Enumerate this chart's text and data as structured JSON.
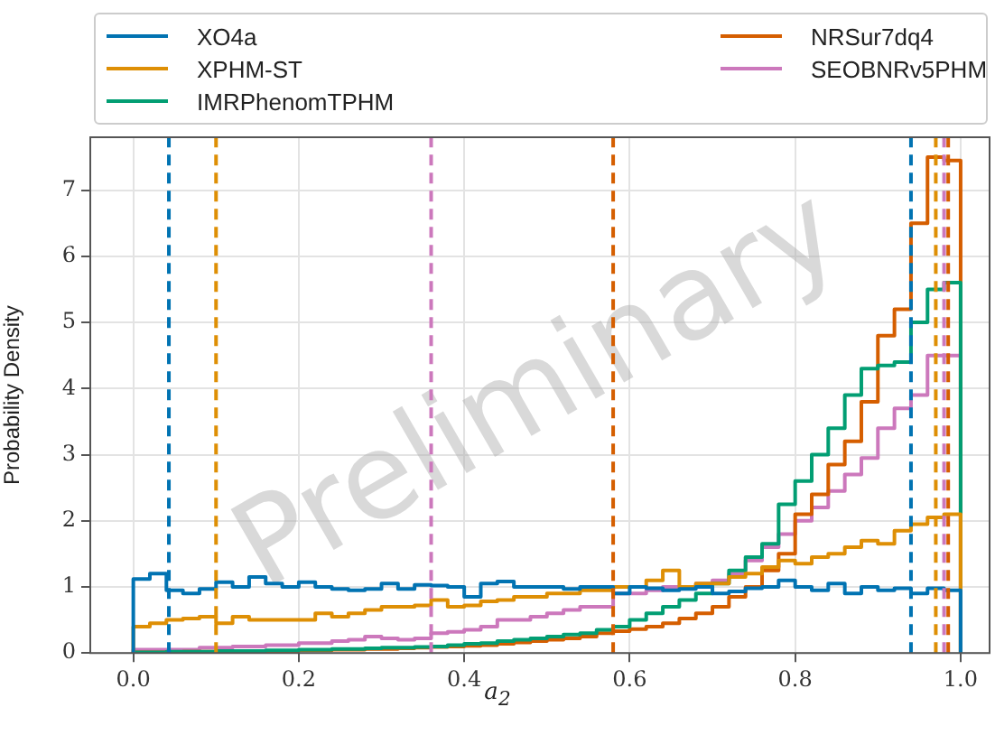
{
  "chart_data": {
    "type": "histogram",
    "xlabel": "a$_{2}$",
    "ylabel": "Probability Density",
    "bins": [
      0,
      0.02,
      0.04,
      0.06,
      0.08,
      0.1,
      0.12,
      0.14,
      0.16,
      0.18,
      0.2,
      0.22,
      0.24,
      0.26,
      0.28,
      0.3,
      0.32,
      0.34,
      0.36,
      0.38,
      0.4,
      0.42,
      0.44,
      0.46,
      0.48,
      0.5,
      0.52,
      0.54,
      0.56,
      0.58,
      0.6,
      0.62,
      0.64,
      0.66,
      0.68,
      0.7,
      0.72,
      0.74,
      0.76,
      0.78,
      0.8,
      0.82,
      0.84,
      0.86,
      0.88,
      0.9,
      0.92,
      0.94,
      0.96,
      0.98,
      1.0
    ],
    "series": [
      {
        "name": "XO4a",
        "color": "#0173b2",
        "values": [
          1.12,
          1.2,
          0.95,
          0.9,
          0.97,
          1.07,
          1.0,
          1.15,
          1.05,
          1.0,
          1.07,
          1.0,
          0.97,
          0.95,
          0.97,
          1.05,
          0.97,
          1.03,
          1.02,
          1.0,
          0.85,
          1.05,
          1.08,
          1.0,
          1.0,
          1.0,
          0.97,
          1.0,
          1.0,
          0.9,
          1.0,
          0.98,
          0.95,
          0.97,
          1.0,
          0.9,
          0.93,
          0.98,
          1.0,
          1.1,
          1.0,
          0.95,
          1.05,
          0.9,
          1.0,
          0.95,
          0.98,
          0.9,
          0.98,
          0.95
        ]
      },
      {
        "name": "XPHM-ST",
        "color": "#de8f05",
        "values": [
          0.4,
          0.45,
          0.5,
          0.52,
          0.55,
          0.45,
          0.55,
          0.5,
          0.5,
          0.5,
          0.5,
          0.6,
          0.55,
          0.6,
          0.65,
          0.7,
          0.7,
          0.72,
          0.8,
          0.7,
          0.72,
          0.78,
          0.8,
          0.85,
          0.85,
          0.9,
          0.9,
          0.95,
          0.95,
          1.0,
          1.0,
          1.1,
          1.25,
          1.0,
          1.05,
          1.05,
          1.15,
          1.2,
          1.3,
          1.4,
          1.35,
          1.45,
          1.5,
          1.6,
          1.7,
          1.65,
          1.85,
          1.95,
          2.05,
          2.1
        ]
      },
      {
        "name": "IMRPhenomTPHM",
        "color": "#029e73",
        "values": [
          0.01,
          0.01,
          0.02,
          0.02,
          0.02,
          0.03,
          0.03,
          0.03,
          0.04,
          0.04,
          0.05,
          0.05,
          0.06,
          0.06,
          0.07,
          0.08,
          0.08,
          0.09,
          0.1,
          0.12,
          0.14,
          0.15,
          0.18,
          0.2,
          0.22,
          0.25,
          0.28,
          0.3,
          0.35,
          0.4,
          0.5,
          0.6,
          0.7,
          0.8,
          0.9,
          1.05,
          1.25,
          1.45,
          1.65,
          2.25,
          2.6,
          3.0,
          3.4,
          3.9,
          4.3,
          4.35,
          4.4,
          5.0,
          5.5,
          5.6
        ]
      },
      {
        "name": "NRSur7dq4",
        "color": "#d55e00",
        "values": [
          0.01,
          0.01,
          0.01,
          0.02,
          0.02,
          0.02,
          0.02,
          0.03,
          0.03,
          0.03,
          0.04,
          0.04,
          0.05,
          0.05,
          0.06,
          0.06,
          0.07,
          0.08,
          0.09,
          0.1,
          0.11,
          0.12,
          0.14,
          0.16,
          0.18,
          0.2,
          0.22,
          0.25,
          0.3,
          0.33,
          0.36,
          0.4,
          0.45,
          0.52,
          0.6,
          0.7,
          0.85,
          1.0,
          1.25,
          1.5,
          2.1,
          2.4,
          2.85,
          3.2,
          3.8,
          4.8,
          5.2,
          6.5,
          7.5,
          7.45
        ]
      },
      {
        "name": "SEOBNRv5PHM",
        "color": "#cc78bc",
        "values": [
          0.05,
          0.05,
          0.05,
          0.05,
          0.08,
          0.08,
          0.1,
          0.1,
          0.12,
          0.12,
          0.15,
          0.15,
          0.18,
          0.2,
          0.25,
          0.22,
          0.2,
          0.22,
          0.3,
          0.32,
          0.35,
          0.4,
          0.5,
          0.5,
          0.55,
          0.6,
          0.65,
          0.7,
          0.7,
          0.9,
          0.9,
          0.95,
          1.0,
          1.0,
          1.05,
          1.1,
          1.2,
          1.4,
          1.6,
          1.8,
          2.0,
          2.2,
          2.45,
          2.7,
          2.95,
          3.4,
          3.7,
          3.9,
          4.5,
          4.5
        ]
      }
    ],
    "ref_lines": [
      {
        "axis": "x",
        "value": 0.043,
        "color": "#0173b2",
        "line_style": "dashed"
      },
      {
        "axis": "x",
        "value": 0.94,
        "color": "#0173b2",
        "line_style": "dashed"
      },
      {
        "axis": "x",
        "value": 0.1,
        "color": "#de8f05",
        "line_style": "dashed"
      },
      {
        "axis": "x",
        "value": 0.97,
        "color": "#de8f05",
        "line_style": "dashed"
      },
      {
        "axis": "x",
        "value": 0.36,
        "color": "#cc78bc",
        "line_style": "dashed"
      },
      {
        "axis": "x",
        "value": 0.98,
        "color": "#cc78bc",
        "line_style": "dashed"
      },
      {
        "axis": "x",
        "value": 0.58,
        "color": "#d55e00",
        "line_style": "dashed"
      },
      {
        "axis": "x",
        "value": 0.985,
        "color": "#d55e00",
        "line_style": "dashed"
      }
    ],
    "xlim": [
      -0.052,
      1.035
    ],
    "ylim": [
      0,
      7.8
    ],
    "xticks": [
      {
        "value": 0,
        "label": "0.0"
      },
      0.2,
      0.4,
      0.6,
      0.8,
      {
        "value": 1,
        "label": "1.0"
      }
    ],
    "yticks": [
      0,
      1,
      2,
      3,
      4,
      5,
      6,
      7
    ],
    "grid": true,
    "legend": "top",
    "annotations": [
      "Preliminary"
    ]
  }
}
